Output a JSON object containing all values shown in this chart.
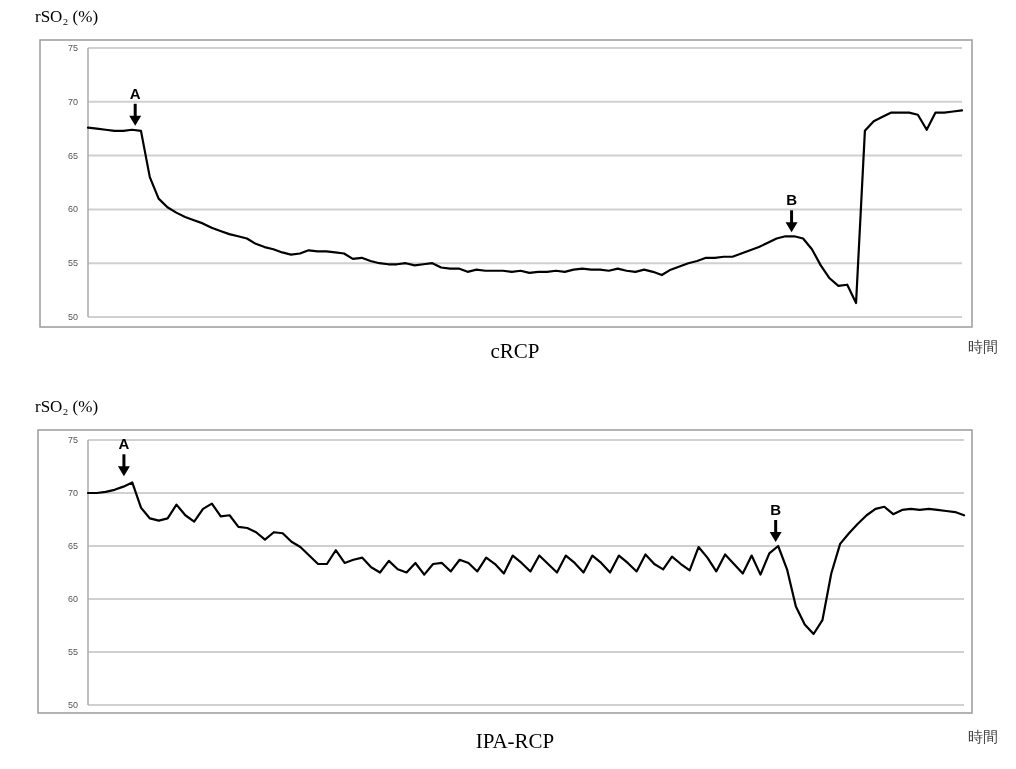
{
  "chart_data": [
    {
      "type": "line",
      "title": "cRCP",
      "ylabel": "rSO₂ (%)",
      "xlabel": "時間",
      "grid": "y",
      "ylim": [
        50,
        75
      ],
      "yticks": [
        50,
        55,
        60,
        65,
        70,
        75
      ],
      "categories": [
        null,
        null,
        null,
        null,
        null,
        null,
        null,
        null,
        null,
        null,
        null,
        null,
        null,
        null,
        null,
        null,
        null,
        null,
        null,
        null,
        null,
        null,
        null,
        null,
        null,
        null,
        null,
        null,
        null,
        null,
        null,
        null,
        null,
        null,
        null,
        null,
        null,
        null,
        null,
        null,
        null,
        null,
        null,
        null,
        null,
        null,
        null,
        null,
        null,
        null,
        null,
        null,
        null,
        null,
        null,
        null,
        null,
        null,
        null,
        null,
        null,
        null,
        null,
        null,
        null,
        null,
        null,
        null,
        null,
        null,
        null,
        null,
        null,
        null,
        null,
        null,
        null,
        null,
        null,
        null,
        null,
        null,
        null,
        null,
        null,
        null,
        null,
        null,
        null,
        null,
        null,
        null,
        null,
        null,
        null,
        null,
        null,
        null,
        null,
        null
      ],
      "series": [
        {
          "color": "#000000",
          "values": [
            67.6,
            67.5,
            67.4,
            67.3,
            67.3,
            67.4,
            67.3,
            63.0,
            61.0,
            60.2,
            59.7,
            59.3,
            59.0,
            58.7,
            58.3,
            58.0,
            57.7,
            57.5,
            57.3,
            56.8,
            56.5,
            56.3,
            56.0,
            55.8,
            55.9,
            56.2,
            56.1,
            56.1,
            56.0,
            55.9,
            55.4,
            55.5,
            55.2,
            55.0,
            54.9,
            54.9,
            55.0,
            54.8,
            54.9,
            55.0,
            54.6,
            54.5,
            54.5,
            54.2,
            54.4,
            54.3,
            54.3,
            54.3,
            54.2,
            54.3,
            54.1,
            54.2,
            54.2,
            54.3,
            54.2,
            54.4,
            54.5,
            54.4,
            54.4,
            54.3,
            54.5,
            54.3,
            54.2,
            54.4,
            54.2,
            53.9,
            54.4,
            54.7,
            55.0,
            55.2,
            55.5,
            55.5,
            55.6,
            55.6,
            55.9,
            56.2,
            56.5,
            56.9,
            57.3,
            57.5,
            57.5,
            57.3,
            56.3,
            54.8,
            53.6,
            52.9,
            53.0,
            51.3,
            67.3,
            68.2,
            68.6,
            69.0,
            69.0,
            69.0,
            68.8,
            67.4,
            69.0,
            69.0,
            69.1,
            69.2
          ]
        }
      ],
      "annotations": [
        {
          "text": "A",
          "y": 67.4
        },
        {
          "text": "B",
          "y": 57.5
        }
      ]
    },
    {
      "type": "line",
      "title": "IPA-RCP",
      "ylabel": "rSO₂ (%)",
      "xlabel": "時間",
      "grid": "y",
      "ylim": [
        50,
        75
      ],
      "yticks": [
        50,
        55,
        60,
        65,
        70,
        75
      ],
      "categories": [
        null,
        null,
        null,
        null,
        null,
        null,
        null,
        null,
        null,
        null,
        null,
        null,
        null,
        null,
        null,
        null,
        null,
        null,
        null,
        null,
        null,
        null,
        null,
        null,
        null,
        null,
        null,
        null,
        null,
        null,
        null,
        null,
        null,
        null,
        null,
        null,
        null,
        null,
        null,
        null,
        null,
        null,
        null,
        null,
        null,
        null,
        null,
        null,
        null,
        null,
        null,
        null,
        null,
        null,
        null,
        null,
        null,
        null,
        null,
        null,
        null,
        null,
        null,
        null,
        null,
        null,
        null,
        null,
        null,
        null,
        null,
        null,
        null,
        null,
        null,
        null,
        null,
        null,
        null,
        null,
        null,
        null,
        null,
        null,
        null,
        null,
        null,
        null,
        null,
        null,
        null,
        null,
        null,
        null,
        null,
        null,
        null,
        null,
        null,
        null
      ],
      "series": [
        {
          "color": "#000000",
          "values": [
            70.0,
            70.0,
            70.1,
            70.3,
            70.6,
            71.0,
            68.6,
            67.6,
            67.4,
            67.6,
            68.9,
            67.9,
            67.3,
            68.5,
            69.0,
            67.8,
            67.9,
            66.8,
            66.7,
            66.3,
            65.6,
            66.3,
            66.2,
            65.4,
            64.9,
            64.1,
            63.3,
            63.3,
            64.6,
            63.4,
            63.7,
            63.9,
            63.0,
            62.5,
            63.6,
            62.8,
            62.5,
            63.4,
            62.3,
            63.3,
            63.4,
            62.6,
            63.7,
            63.4,
            62.6,
            63.9,
            63.3,
            62.4,
            64.1,
            63.4,
            62.6,
            64.1,
            63.3,
            62.5,
            64.1,
            63.4,
            62.5,
            64.1,
            63.4,
            62.5,
            64.1,
            63.4,
            62.6,
            64.2,
            63.3,
            62.8,
            64.0,
            63.3,
            62.7,
            64.9,
            63.9,
            62.6,
            64.2,
            63.3,
            62.4,
            64.1,
            62.3,
            64.3,
            65.0,
            62.8,
            59.3,
            57.6,
            56.7,
            58.0,
            62.4,
            65.2,
            66.2,
            67.1,
            67.9,
            68.5,
            68.7,
            68.0,
            68.4,
            68.5,
            68.4,
            68.5,
            68.4,
            68.3,
            68.2,
            67.9
          ]
        }
      ],
      "annotations": [
        {
          "text": "A",
          "y": 71.2
        },
        {
          "text": "B",
          "y": 65.0
        }
      ]
    }
  ]
}
